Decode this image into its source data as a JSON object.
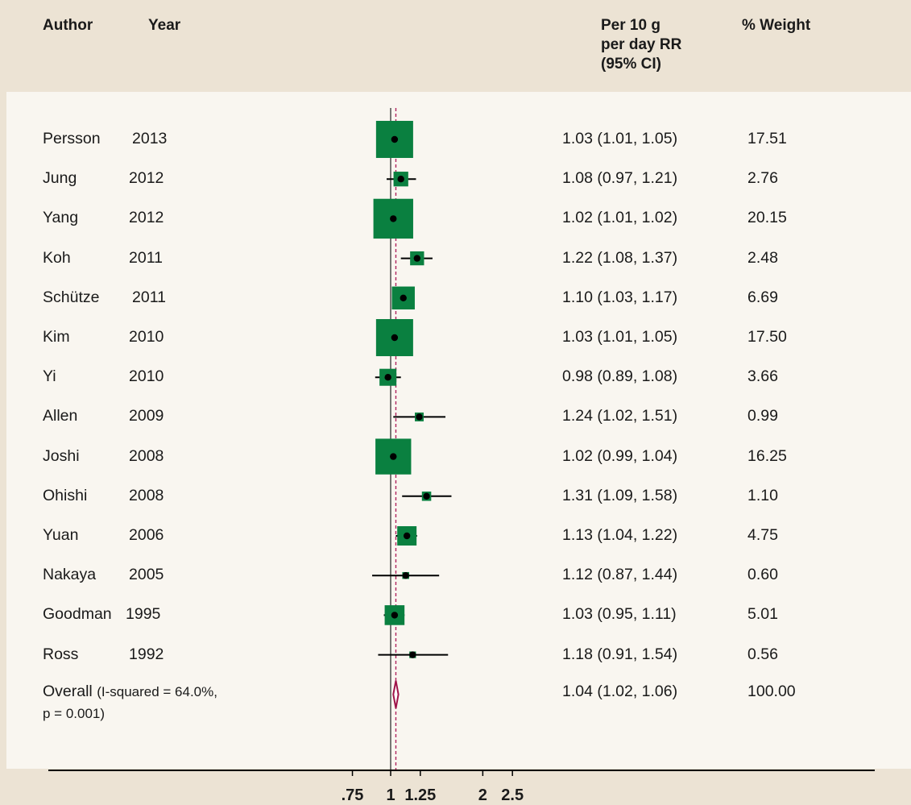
{
  "header": {
    "author": "Author",
    "year": "Year",
    "rr": "Per 10 g\nper day RR\n(95% CI)",
    "weight": "% Weight"
  },
  "colors": {
    "box": "#0a8040",
    "line": "#000000",
    "ref_line": "#b0245e",
    "diamond": "#a0144a"
  },
  "chart_data": {
    "type": "forest",
    "xlabel": "",
    "x_scale": "log",
    "xlim": [
      0.72,
      3.6
    ],
    "xticks": [
      0.75,
      1,
      1.25,
      2,
      2.5
    ],
    "xtick_labels": [
      ".75",
      "1",
      "1.25",
      "2",
      "2.5"
    ],
    "null_line": 1,
    "pooled_line": 1.04,
    "studies": [
      {
        "author": "Persson",
        "year": "2013",
        "rr": 1.03,
        "lo": 1.01,
        "hi": 1.05,
        "ci_text": "1.03 (1.01, 1.05)",
        "weight": 17.51,
        "weight_text": "17.51"
      },
      {
        "author": "Jung",
        "year": "2012",
        "rr": 1.08,
        "lo": 0.97,
        "hi": 1.21,
        "ci_text": "1.08 (0.97, 1.21)",
        "weight": 2.76,
        "weight_text": "2.76"
      },
      {
        "author": "Yang",
        "year": "2012",
        "rr": 1.02,
        "lo": 1.01,
        "hi": 1.02,
        "ci_text": "1.02 (1.01, 1.02)",
        "weight": 20.15,
        "weight_text": "20.15"
      },
      {
        "author": "Koh",
        "year": "2011",
        "rr": 1.22,
        "lo": 1.08,
        "hi": 1.37,
        "ci_text": "1.22 (1.08, 1.37)",
        "weight": 2.48,
        "weight_text": "2.48"
      },
      {
        "author": "Schütze",
        "year": "2011",
        "rr": 1.1,
        "lo": 1.03,
        "hi": 1.17,
        "ci_text": "1.10 (1.03, 1.17)",
        "weight": 6.69,
        "weight_text": "6.69"
      },
      {
        "author": "Kim",
        "year": "2010",
        "rr": 1.03,
        "lo": 1.01,
        "hi": 1.05,
        "ci_text": "1.03 (1.01, 1.05)",
        "weight": 17.5,
        "weight_text": "17.50"
      },
      {
        "author": "Yi",
        "year": "2010",
        "rr": 0.98,
        "lo": 0.89,
        "hi": 1.08,
        "ci_text": "0.98 (0.89, 1.08)",
        "weight": 3.66,
        "weight_text": "3.66"
      },
      {
        "author": "Allen",
        "year": "2009",
        "rr": 1.24,
        "lo": 1.02,
        "hi": 1.51,
        "ci_text": "1.24 (1.02, 1.51)",
        "weight": 0.99,
        "weight_text": "0.99"
      },
      {
        "author": "Joshi",
        "year": "2008",
        "rr": 1.02,
        "lo": 0.99,
        "hi": 1.04,
        "ci_text": "1.02 (0.99, 1.04)",
        "weight": 16.25,
        "weight_text": "16.25"
      },
      {
        "author": "Ohishi",
        "year": "2008",
        "rr": 1.31,
        "lo": 1.09,
        "hi": 1.58,
        "ci_text": "1.31 (1.09, 1.58)",
        "weight": 1.1,
        "weight_text": "1.10"
      },
      {
        "author": "Yuan",
        "year": "2006",
        "rr": 1.13,
        "lo": 1.04,
        "hi": 1.22,
        "ci_text": "1.13 (1.04, 1.22)",
        "weight": 4.75,
        "weight_text": "4.75"
      },
      {
        "author": "Nakaya",
        "year": "2005",
        "rr": 1.12,
        "lo": 0.87,
        "hi": 1.44,
        "ci_text": "1.12 (0.87, 1.44)",
        "weight": 0.6,
        "weight_text": "0.60"
      },
      {
        "author": "Goodman",
        "year": "1995",
        "rr": 1.03,
        "lo": 0.95,
        "hi": 1.11,
        "ci_text": "1.03 (0.95, 1.11)",
        "weight": 5.01,
        "weight_text": "5.01"
      },
      {
        "author": "Ross",
        "year": "1992",
        "rr": 1.18,
        "lo": 0.91,
        "hi": 1.54,
        "ci_text": "1.18 (0.91, 1.54)",
        "weight": 0.56,
        "weight_text": "0.56"
      }
    ],
    "overall": {
      "label": "Overall",
      "note1": "(I-squared = 64.0%,",
      "note2": "p = 0.001)",
      "rr": 1.04,
      "lo": 1.02,
      "hi": 1.06,
      "ci_text": "1.04 (1.02, 1.06)",
      "weight_text": "100.00"
    }
  }
}
